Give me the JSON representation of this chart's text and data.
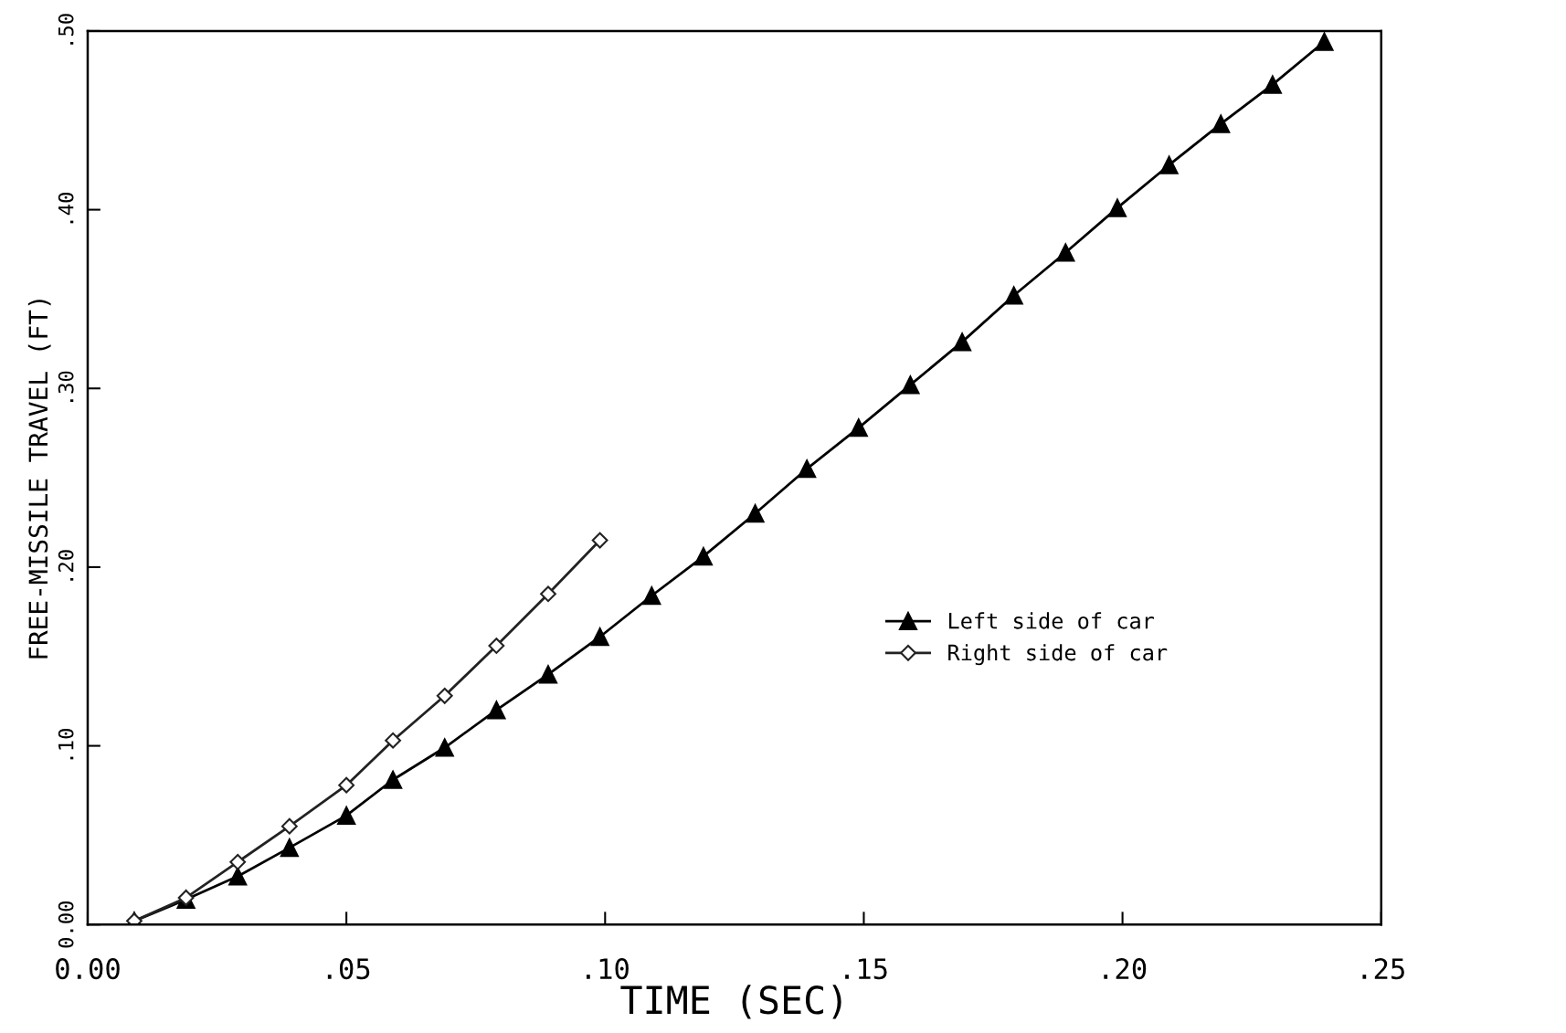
{
  "chart_data": {
    "type": "line",
    "xlabel": "TIME (SEC)",
    "ylabel": "FREE-MISSILE TRAVEL (FT)",
    "xlim": [
      0,
      0.25
    ],
    "ylim": [
      0,
      0.5
    ],
    "xticks": [
      {
        "value": 0,
        "label": "0.00"
      },
      {
        "value": 0.05,
        "label": ".05"
      },
      {
        "value": 0.1,
        "label": ".10"
      },
      {
        "value": 0.15,
        "label": ".15"
      },
      {
        "value": 0.2,
        "label": ".20"
      },
      {
        "value": 0.25,
        "label": ".25"
      }
    ],
    "yticks": [
      {
        "value": 0,
        "label": "0.00"
      },
      {
        "value": 0.1,
        "label": ".10"
      },
      {
        "value": 0.2,
        "label": ".20"
      },
      {
        "value": 0.3,
        "label": ".30"
      },
      {
        "value": 0.4,
        "label": ".40"
      },
      {
        "value": 0.5,
        "label": ".50"
      }
    ],
    "grid": false,
    "legend": "right",
    "series": [
      {
        "name": "Left side of car",
        "color": "#000000",
        "marker": "triangle",
        "x": [
          0.009,
          0.019,
          0.029,
          0.039,
          0.05,
          0.059,
          0.069,
          0.079,
          0.089,
          0.099,
          0.109,
          0.119,
          0.129,
          0.139,
          0.149,
          0.159,
          0.169,
          0.179,
          0.189,
          0.199,
          0.209,
          0.219,
          0.229,
          0.239
        ],
        "values": [
          0.002,
          0.014,
          0.027,
          0.043,
          0.061,
          0.081,
          0.099,
          0.12,
          0.14,
          0.161,
          0.184,
          0.206,
          0.23,
          0.255,
          0.278,
          0.302,
          0.326,
          0.352,
          0.376,
          0.401,
          0.425,
          0.448,
          0.47,
          0.494
        ]
      },
      {
        "name": "Right side of car",
        "color": "#222222",
        "marker": "diamond",
        "x": [
          0.009,
          0.019,
          0.029,
          0.039,
          0.05,
          0.059,
          0.069,
          0.079,
          0.089,
          0.099
        ],
        "values": [
          0.002,
          0.015,
          0.035,
          0.055,
          0.078,
          0.103,
          0.128,
          0.156,
          0.185,
          0.215
        ]
      }
    ]
  }
}
